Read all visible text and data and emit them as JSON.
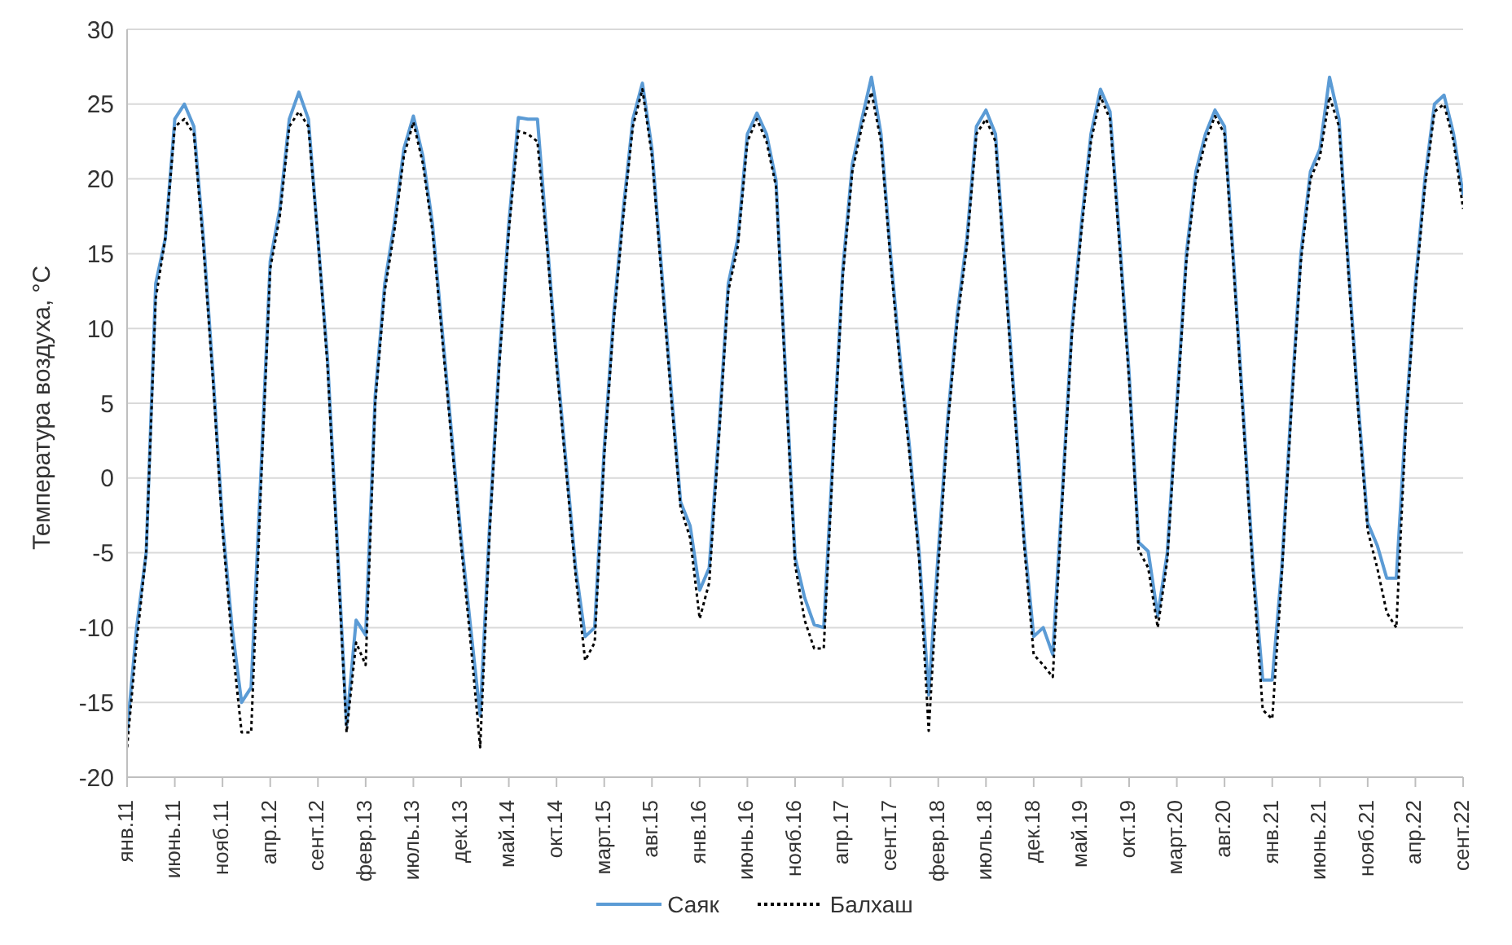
{
  "chart_data": {
    "type": "line",
    "ylabel": "Температура воздуха, °C",
    "categories": [
      "янв.11",
      null,
      null,
      null,
      null,
      "июнь.11",
      null,
      null,
      null,
      null,
      "нояб.11",
      null,
      null,
      null,
      null,
      "апр.12",
      null,
      null,
      null,
      null,
      "сент.12",
      null,
      null,
      null,
      null,
      "февр.13",
      null,
      null,
      null,
      null,
      "июль.13",
      null,
      null,
      null,
      null,
      "дек.13",
      null,
      null,
      null,
      null,
      "май.14",
      null,
      null,
      null,
      null,
      "окт.14",
      null,
      null,
      null,
      null,
      "март.15",
      null,
      null,
      null,
      null,
      "авг.15",
      null,
      null,
      null,
      null,
      "янв.16",
      null,
      null,
      null,
      null,
      "июнь.16",
      null,
      null,
      null,
      null,
      "нояб.16",
      null,
      null,
      null,
      null,
      "апр.17",
      null,
      null,
      null,
      null,
      "сент.17",
      null,
      null,
      null,
      null,
      "февр.18",
      null,
      null,
      null,
      null,
      "июль.18",
      null,
      null,
      null,
      null,
      "дек.18",
      null,
      null,
      null,
      null,
      "май.19",
      null,
      null,
      null,
      null,
      "окт.19",
      null,
      null,
      null,
      null,
      "март.20",
      null,
      null,
      null,
      null,
      "авг.20",
      null,
      null,
      null,
      null,
      "янв.21",
      null,
      null,
      null,
      null,
      "июнь.21",
      null,
      null,
      null,
      null,
      "нояб.21",
      null,
      null,
      null,
      null,
      "апр.22",
      null,
      null,
      null,
      null,
      "сент.22"
    ],
    "series": [
      {
        "name": "Саяк",
        "color": "#5b9bd5",
        "line_style": "solid",
        "values": [
          -17,
          -10,
          -5,
          13,
          16,
          24,
          25,
          23.5,
          16,
          7,
          -3,
          -10,
          -15,
          -14,
          0,
          14.5,
          18,
          24,
          25.8,
          24,
          16,
          8,
          -4,
          -16.5,
          -9.5,
          -10.5,
          5.5,
          13,
          17,
          22,
          24.2,
          21.5,
          17,
          10,
          3,
          -4,
          -10,
          -15.9,
          -3,
          8,
          17,
          24.1,
          24,
          24,
          16,
          8,
          1,
          -6,
          -10.6,
          -10,
          2,
          11,
          18,
          24,
          26.4,
          22,
          14,
          6,
          -1.6,
          -3.2,
          -7.5,
          -6,
          3,
          13,
          16,
          23,
          24.4,
          23,
          19.9,
          7,
          -5.3,
          -8,
          -9.8,
          -10,
          2,
          14,
          21,
          24,
          26.8,
          23,
          15,
          8,
          2,
          -5,
          -14.5,
          -5,
          4,
          11,
          16,
          23.5,
          24.6,
          23,
          14,
          5,
          -4,
          -10.6,
          -10,
          -11.8,
          -1,
          10,
          17,
          23,
          26,
          24.5,
          16,
          7,
          -4.3,
          -4.9,
          -9.2,
          -5,
          5,
          15,
          20.5,
          23,
          24.6,
          23.5,
          14,
          4,
          -6,
          -13.5,
          -13.5,
          -6,
          5,
          15,
          20.5,
          22,
          26.8,
          24,
          14,
          5,
          -3,
          -4.5,
          -6.7,
          -6.7,
          4,
          13,
          20,
          25,
          25.6,
          23,
          18.9
        ]
      },
      {
        "name": "Балхаш",
        "color": "#000000",
        "line_style": "dotted",
        "values": [
          -18,
          -11,
          -5,
          12,
          16,
          23.5,
          24,
          23,
          15.5,
          6.5,
          -3.5,
          -11,
          -17,
          -17,
          -1,
          14,
          17.5,
          23.5,
          24.5,
          23.5,
          16,
          7.5,
          -4.5,
          -17,
          -11,
          -12.5,
          5,
          12.5,
          16.5,
          21.5,
          23.8,
          21,
          16.5,
          9.5,
          2.5,
          -4.5,
          -11,
          -18,
          -3.5,
          7.5,
          16.5,
          23.2,
          23,
          22.5,
          15.5,
          7.5,
          0.5,
          -6.5,
          -12.2,
          -11,
          1.5,
          10.5,
          17.5,
          23.5,
          26,
          21.5,
          13.5,
          5.5,
          -2,
          -4,
          -9.4,
          -7,
          2.5,
          12.5,
          15.5,
          22.5,
          24,
          22.5,
          19.5,
          6.5,
          -5.8,
          -9.5,
          -11.4,
          -11.4,
          1.5,
          13.5,
          20.5,
          23.5,
          25.8,
          22.5,
          14.5,
          7.5,
          1.5,
          -5.5,
          -16.9,
          -6,
          3.5,
          10.5,
          15.5,
          23,
          24,
          22.5,
          13.5,
          4.5,
          -4.5,
          -11.8,
          -12.5,
          -13.3,
          -1.5,
          9.5,
          16.5,
          22.5,
          25.5,
          24,
          15.5,
          6.5,
          -4.8,
          -6,
          -10,
          -5.5,
          4.5,
          14.5,
          20,
          22.5,
          24.2,
          23,
          13.5,
          3.5,
          -6.5,
          -15.5,
          -16.1,
          -6.5,
          4.5,
          14.5,
          20,
          21.5,
          25.5,
          23.5,
          13.5,
          4.5,
          -3.5,
          -6,
          -9,
          -10,
          3.5,
          12.5,
          19.5,
          24.5,
          25,
          22.5,
          18
        ]
      }
    ],
    "ylim": [
      -20,
      30
    ],
    "yticks": [
      -20,
      -15,
      -10,
      -5,
      0,
      5,
      10,
      15,
      20,
      25,
      30
    ],
    "grid": "y",
    "legend": "bottom",
    "marker": "none"
  }
}
